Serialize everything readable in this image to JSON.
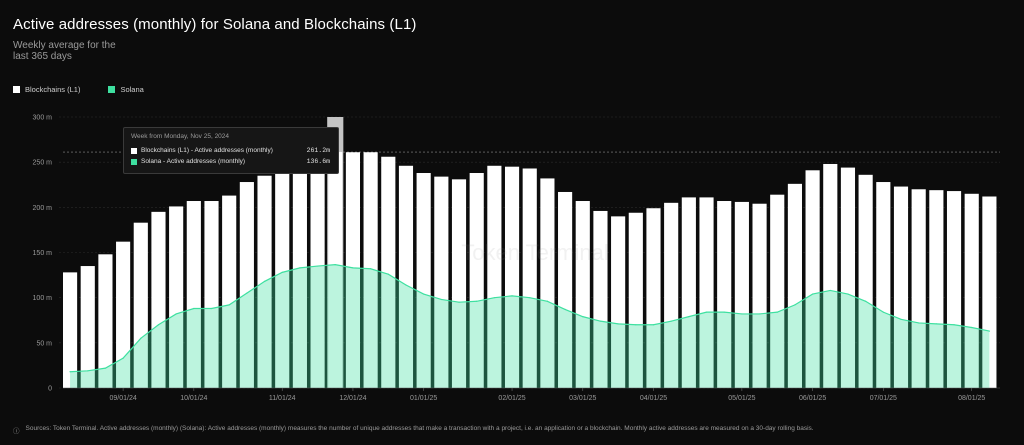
{
  "title": "Active addresses (monthly) for Solana and Blockchains (L1)",
  "subtitle": "Weekly average for the last 365 days",
  "legend": [
    {
      "label": "Blockchains (L1)",
      "color": "#ffffff"
    },
    {
      "label": "Solana",
      "color": "#3ee0a0"
    }
  ],
  "watermark": "Token Terminal",
  "tooltip": {
    "header": "Week from Monday, Nov 25, 2024",
    "rows": [
      {
        "label": "Blockchains (L1) - Active addresses (monthly)",
        "value": "261.2m",
        "color": "#ffffff"
      },
      {
        "label": "Solana - Active addresses (monthly)",
        "value": "136.6m",
        "color": "#3ee0a0"
      }
    ]
  },
  "footer": {
    "icon": "info-icon",
    "text": "Sources: Token Terminal. Active addresses (monthly) (Solana): Active addresses (monthly) measures the number of unique addresses that make a transaction with a project, i.e. an application or a blockchain. Monthly active addresses are measured on a 30-day rolling basis."
  },
  "chart_data": {
    "type": "bar",
    "ylim": [
      0,
      300
    ],
    "yticks": [
      0,
      50,
      100,
      150,
      200,
      250,
      300
    ],
    "ytick_labels": [
      "0",
      "50 m",
      "100 m",
      "150 m",
      "200 m",
      "250 m",
      "300 m"
    ],
    "xtick_labels": [
      "09/01/24",
      "10/01/24",
      "11/01/24",
      "12/01/24",
      "01/01/25",
      "02/01/25",
      "03/01/25",
      "04/01/25",
      "05/01/25",
      "06/01/25",
      "07/01/25",
      "08/01/25"
    ],
    "xtick_bar_index": [
      3,
      7,
      12,
      16,
      20,
      25,
      29,
      33,
      38,
      42,
      46,
      51
    ],
    "reference_line": 261.2,
    "highlight_index": 15,
    "series": [
      {
        "name": "Blockchains (L1)",
        "kind": "bar",
        "color": "#ffffff",
        "values": [
          128,
          135,
          148,
          162,
          183,
          195,
          201,
          207,
          207,
          213,
          228,
          235,
          240,
          245,
          248,
          261.2,
          261,
          261,
          256,
          246,
          238,
          234,
          231,
          238,
          246,
          245,
          243,
          232,
          217,
          207,
          196,
          190,
          194,
          199,
          205,
          211,
          211,
          207,
          206,
          204,
          214,
          226,
          241,
          248,
          244,
          236,
          228,
          223,
          220,
          219,
          218,
          215,
          212
        ]
      },
      {
        "name": "Solana",
        "kind": "area",
        "color": "#3ee0a0",
        "values": [
          18,
          19,
          22,
          33,
          55,
          70,
          82,
          88,
          88,
          92,
          105,
          118,
          128,
          133,
          135,
          136.6,
          133,
          132,
          126,
          114,
          104,
          98,
          95,
          96,
          100,
          102,
          100,
          96,
          87,
          79,
          74,
          71,
          70,
          70,
          74,
          79,
          84,
          84,
          82,
          82,
          84,
          92,
          104,
          108,
          104,
          96,
          84,
          76,
          72,
          71,
          70,
          67,
          63
        ]
      }
    ]
  }
}
